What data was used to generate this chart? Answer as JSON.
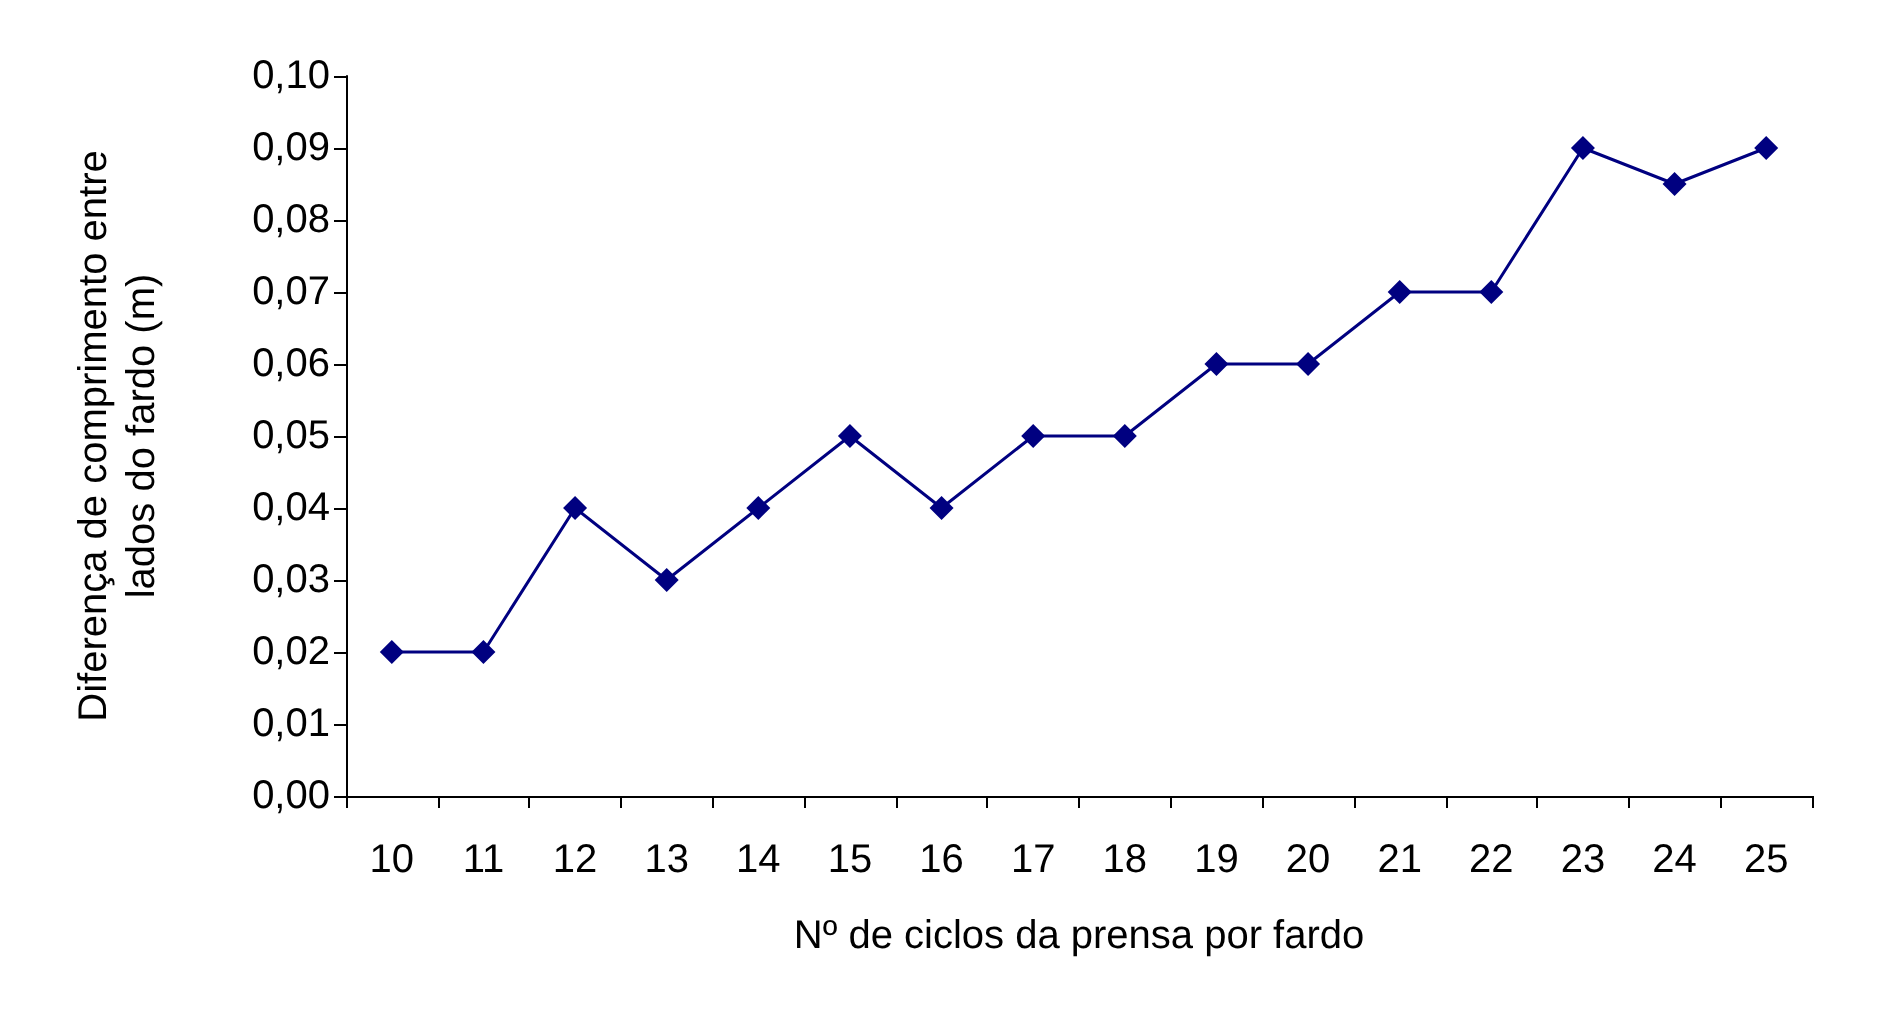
{
  "chart_data": {
    "type": "line",
    "xlabel": "Nº de ciclos da prensa por fardo",
    "ylabel": "Diferença de comprimento entre lados do fardo (m)",
    "categories": [
      "10",
      "11",
      "12",
      "13",
      "14",
      "15",
      "16",
      "17",
      "18",
      "19",
      "20",
      "21",
      "22",
      "23",
      "24",
      "25"
    ],
    "series": [
      {
        "color": "#000080",
        "values": [
          0.02,
          0.02,
          0.04,
          0.03,
          0.04,
          0.05,
          0.04,
          0.05,
          0.05,
          0.06,
          0.06,
          0.07,
          0.07,
          0.09,
          0.085,
          0.09
        ]
      }
    ],
    "ylim": [
      0,
      0.1
    ],
    "yticks": [
      {
        "value": 0,
        "label": "0,00"
      },
      {
        "value": 0.01,
        "label": "0,01"
      },
      {
        "value": 0.02,
        "label": "0,02"
      },
      {
        "value": 0.03,
        "label": "0,03"
      },
      {
        "value": 0.04,
        "label": "0,04"
      },
      {
        "value": 0.05,
        "label": "0,05"
      },
      {
        "value": 0.06,
        "label": "0,06"
      },
      {
        "value": 0.07,
        "label": "0,07"
      },
      {
        "value": 0.08,
        "label": "0,08"
      },
      {
        "value": 0.09,
        "label": "0,09"
      },
      {
        "value": 0.1,
        "label": "0,10"
      }
    ],
    "marker": "diamond",
    "line_style": "solid"
  }
}
